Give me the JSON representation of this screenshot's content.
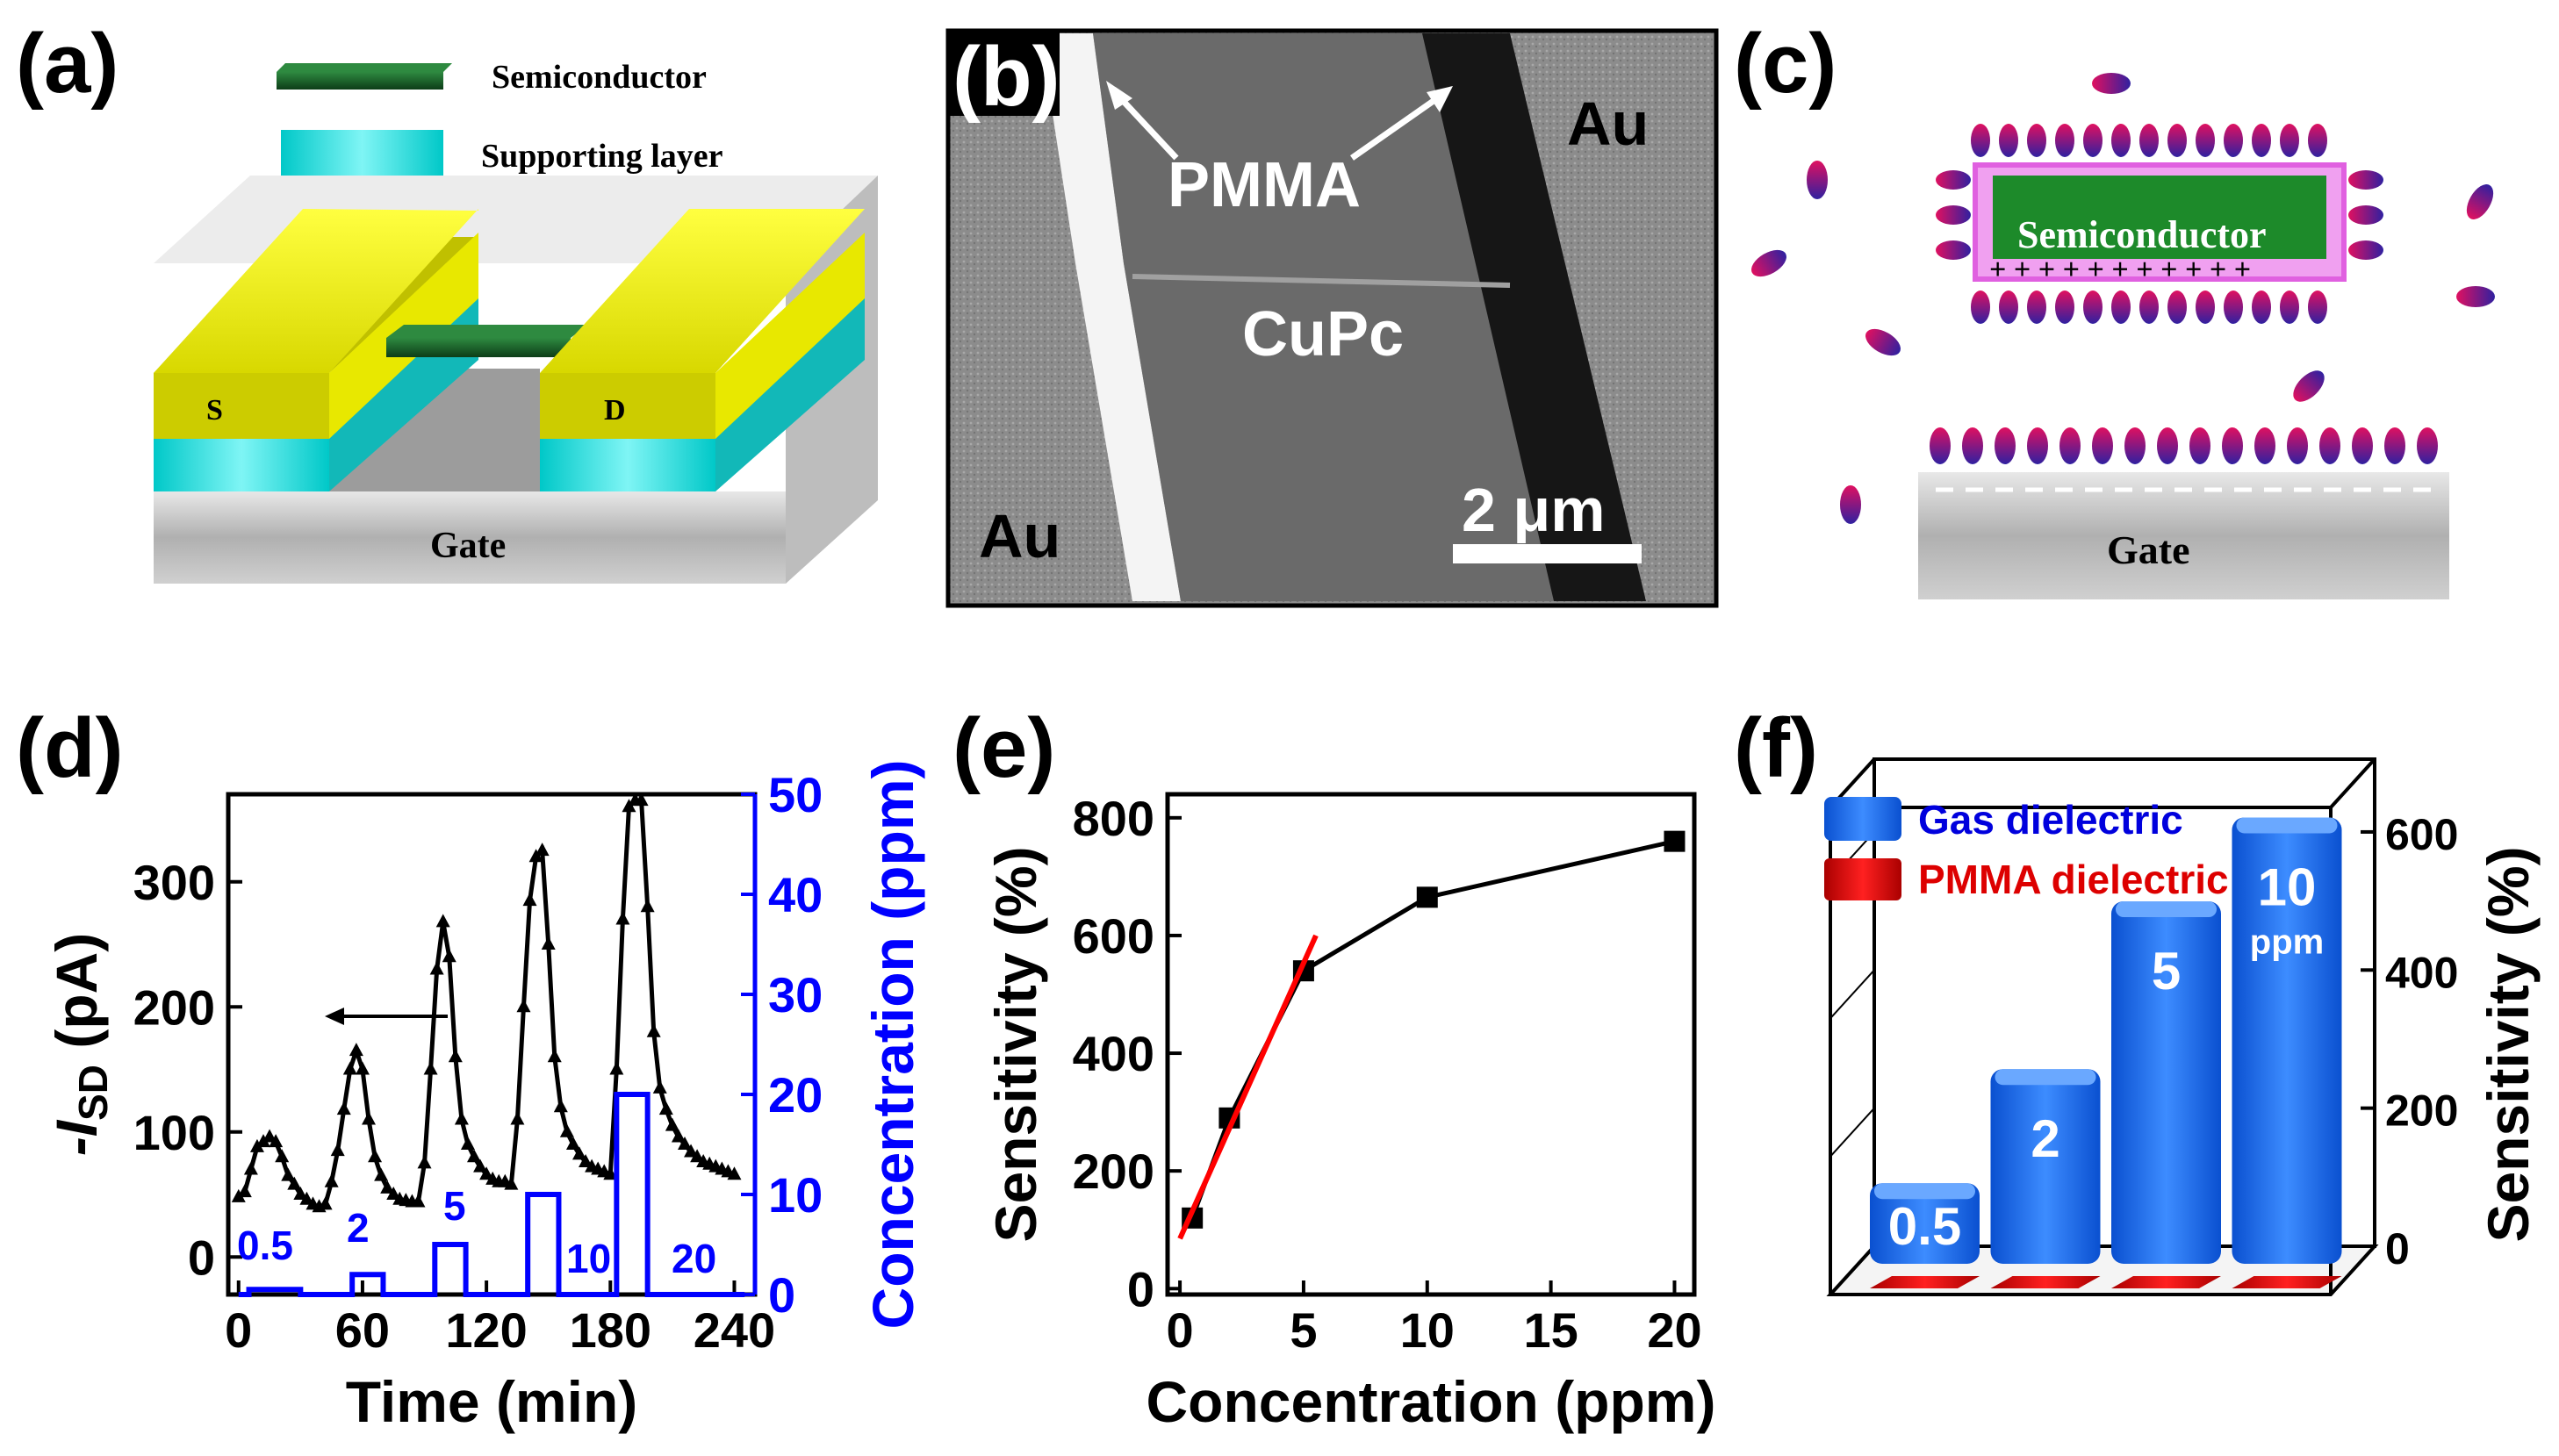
{
  "figure": {
    "panel_a": {
      "label": "(a)",
      "legend_semiconductor": "Semiconductor",
      "legend_supporting": "Supporting layer",
      "source_label": "S",
      "drain_label": "D",
      "gate_label": "Gate",
      "colors": {
        "electrode": "#f0f000",
        "support": "#22dddd",
        "semiconductor": "#1a5c2a",
        "gate": "#c8c8c8"
      }
    },
    "panel_b": {
      "label": "(b)",
      "pmma_label": "PMMA",
      "cupc_label": "CuPc",
      "au_left": "Au",
      "au_right": "Au",
      "scale_bar": "2 μm"
    },
    "panel_c": {
      "label": "(c)",
      "semiconductor_label": "Semiconductor",
      "gate_label": "Gate",
      "plus_signs": "+ + + + + + + + + + +",
      "colors": {
        "molecule_a": "#3a2aa0",
        "molecule_b": "#e0106a",
        "semiconductor": "#1d8a2a",
        "pmma": "#e070e0"
      }
    }
  },
  "chart_data": [
    {
      "panel": "(d)",
      "type": "line",
      "xlabel": "Time (min)",
      "ylabel": "-I_SD (pA)",
      "ylabel_main": "-I",
      "ylabel_sub": "SD",
      "ylabel_unit": " (pA)",
      "y2label": "Concentration (ppm)",
      "xlim": [
        -5,
        250
      ],
      "ylim": [
        -30,
        370
      ],
      "y2lim": [
        0,
        50
      ],
      "xticks": [
        "0",
        "60",
        "120",
        "180",
        "240"
      ],
      "yticks": [
        "0",
        "100",
        "200",
        "300"
      ],
      "y2ticks": [
        "0",
        "10",
        "20",
        "30",
        "40",
        "50"
      ],
      "conc_labels": [
        "0.5",
        "2",
        "5",
        "10",
        "20"
      ],
      "series": [
        {
          "name": "-I_SD",
          "color": "#000000",
          "x": [
            0,
            3,
            6,
            9,
            12,
            15,
            18,
            21,
            24,
            27,
            30,
            33,
            36,
            39,
            42,
            45,
            48,
            51,
            54,
            57,
            60,
            63,
            66,
            69,
            72,
            75,
            78,
            81,
            84,
            87,
            90,
            93,
            96,
            99,
            102,
            105,
            108,
            111,
            114,
            117,
            120,
            123,
            126,
            129,
            132,
            135,
            138,
            141,
            144,
            147,
            150,
            153,
            156,
            159,
            162,
            165,
            168,
            171,
            174,
            177,
            180,
            183,
            186,
            189,
            192,
            195,
            198,
            201,
            204,
            207,
            210,
            213,
            216,
            219,
            222,
            225,
            228,
            231,
            234,
            237,
            240
          ],
          "y": [
            48,
            52,
            70,
            88,
            92,
            96,
            92,
            80,
            65,
            58,
            50,
            46,
            42,
            40,
            42,
            60,
            85,
            118,
            150,
            165,
            150,
            110,
            80,
            65,
            55,
            50,
            46,
            45,
            44,
            44,
            75,
            150,
            230,
            268,
            240,
            160,
            110,
            90,
            80,
            72,
            66,
            62,
            60,
            60,
            58,
            110,
            200,
            285,
            320,
            325,
            250,
            160,
            120,
            100,
            90,
            82,
            76,
            72,
            70,
            68,
            66,
            150,
            270,
            360,
            365,
            365,
            280,
            180,
            135,
            118,
            105,
            96,
            90,
            84,
            80,
            76,
            74,
            72,
            70,
            68,
            66
          ]
        },
        {
          "name": "Concentration",
          "color": "#0000ff",
          "x": [
            0,
            5,
            5,
            30,
            30,
            55,
            55,
            70,
            70,
            95,
            95,
            110,
            110,
            140,
            140,
            155,
            155,
            183,
            183,
            198,
            198,
            245
          ],
          "y": [
            0,
            0,
            0.5,
            0.5,
            0,
            0,
            2,
            2,
            0,
            0,
            5,
            5,
            0,
            0,
            10,
            10,
            0,
            0,
            20,
            20,
            0,
            0
          ]
        }
      ]
    },
    {
      "panel": "(e)",
      "type": "line",
      "xlabel": "Concentration (ppm)",
      "ylabel": "Sensitivity (%)",
      "xticks": [
        "0",
        "5",
        "10",
        "15",
        "20"
      ],
      "yticks": [
        "0",
        "200",
        "400",
        "600",
        "800"
      ],
      "xlim": [
        -0.5,
        20.8
      ],
      "ylim": [
        -10,
        840
      ],
      "series": [
        {
          "name": "Sensitivity",
          "color": "#000000",
          "x": [
            0.5,
            2,
            5,
            10,
            20
          ],
          "y": [
            120,
            290,
            540,
            665,
            760
          ]
        },
        {
          "name": "Linear fit",
          "color": "#ff0000",
          "x": [
            0,
            5.5
          ],
          "y": [
            85,
            600
          ]
        }
      ]
    },
    {
      "panel": "(f)",
      "type": "bar",
      "ylabel": "Sensitivity (%)",
      "yticks": [
        "0",
        "200",
        "400",
        "600"
      ],
      "ylim": [
        0,
        680
      ],
      "categories": [
        "0.5",
        "2",
        "5",
        "10"
      ],
      "category_units": "ppm",
      "series": [
        {
          "name": "Gas dielectric",
          "color": "#1a6fff",
          "values": [
            120,
            290,
            540,
            665
          ]
        },
        {
          "name": "PMMA dielectric",
          "color": "#dd0000",
          "values": [
            2,
            2,
            2,
            2
          ]
        }
      ]
    }
  ]
}
